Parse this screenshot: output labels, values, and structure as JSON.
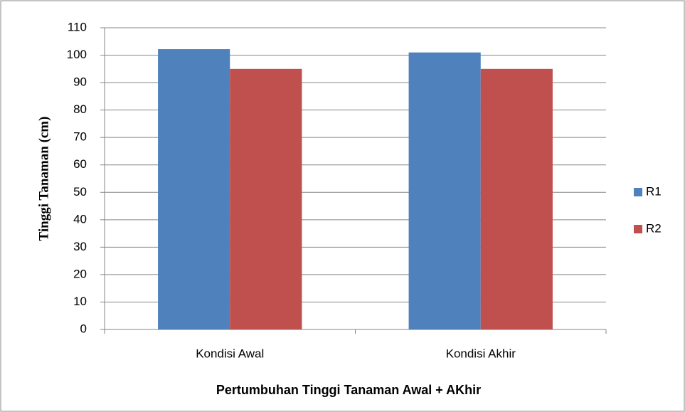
{
  "chart_data": {
    "type": "bar",
    "xlabel": "Pertumbuhan Tinggi Tanaman Awal + AKhir",
    "ylabel": "Tinggi Tanaman (cm)",
    "categories": [
      "Kondisi Awal",
      "Kondisi Akhir"
    ],
    "series": [
      {
        "name": "R1",
        "color": "#4f81bd",
        "values": [
          102.2,
          101
        ]
      },
      {
        "name": "R2",
        "color": "#c0504d",
        "values": [
          95,
          95
        ]
      }
    ],
    "ylim": [
      0,
      110
    ],
    "yticks": [
      0,
      10,
      20,
      30,
      40,
      50,
      60,
      70,
      80,
      90,
      100,
      110
    ],
    "grid": true,
    "legend": "right"
  }
}
